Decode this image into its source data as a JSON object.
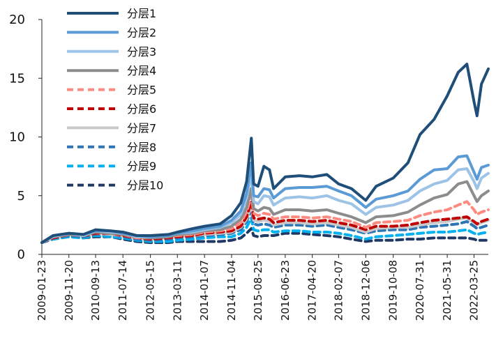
{
  "chart_data": {
    "type": "line",
    "title": "",
    "xlabel": "",
    "ylabel": "",
    "ylim": [
      0,
      20
    ],
    "yticks": [
      0,
      5,
      10,
      15,
      20
    ],
    "xticks": [
      "2009-01-23",
      "2009-11-20",
      "2010-09-13",
      "2011-07-14",
      "2012-05-15",
      "2013-03-11",
      "2014-01-07",
      "2014-11-04",
      "2015-08-25",
      "2016-06-23",
      "2017-04-20",
      "2018-02-07",
      "2018-12-06",
      "2019-10-08",
      "2020-07-31",
      "2021-05-31",
      "2022-03-25"
    ],
    "xrange": [
      "2009-01-23",
      "2022-08-31"
    ],
    "legend_position": "top-left",
    "grid": false,
    "x": [
      "2009-01-23",
      "2009-05-29",
      "2009-11-20",
      "2010-04-30",
      "2010-09-13",
      "2011-02-28",
      "2011-07-14",
      "2011-12-15",
      "2012-05-15",
      "2012-11-30",
      "2013-03-11",
      "2013-08-30",
      "2014-01-07",
      "2014-06-30",
      "2014-11-04",
      "2015-02-15",
      "2015-04-20",
      "2015-06-12",
      "2015-07-08",
      "2015-08-25",
      "2015-10-30",
      "2015-12-31",
      "2016-02-15",
      "2016-06-23",
      "2016-11-30",
      "2017-04-20",
      "2017-09-30",
      "2018-02-07",
      "2018-06-30",
      "2018-12-06",
      "2019-03-31",
      "2019-10-08",
      "2020-03-20",
      "2020-07-31",
      "2021-01-05",
      "2021-05-31",
      "2021-09-30",
      "2022-01-05",
      "2022-03-25",
      "2022-04-27",
      "2022-06-15",
      "2022-08-31"
    ],
    "series": [
      {
        "name": "分层1",
        "color": "#1f4e79",
        "dash": "solid",
        "width": 4,
        "values": [
          1.0,
          1.6,
          1.8,
          1.7,
          2.1,
          2.0,
          1.9,
          1.6,
          1.6,
          1.7,
          1.9,
          2.2,
          2.4,
          2.6,
          3.3,
          4.4,
          6.2,
          9.9,
          6.0,
          5.8,
          7.5,
          7.2,
          5.6,
          6.6,
          6.7,
          6.6,
          6.8,
          6.0,
          5.6,
          4.6,
          5.8,
          6.5,
          7.8,
          10.2,
          11.5,
          13.5,
          15.5,
          16.2,
          13.0,
          11.8,
          14.5,
          15.8
        ]
      },
      {
        "name": "分层2",
        "color": "#5b9bd5",
        "dash": "solid",
        "width": 4,
        "values": [
          1.0,
          1.6,
          1.8,
          1.7,
          2.0,
          2.0,
          1.8,
          1.6,
          1.5,
          1.6,
          1.8,
          2.0,
          2.2,
          2.4,
          2.9,
          3.7,
          5.2,
          7.8,
          5.0,
          4.9,
          5.6,
          5.5,
          4.8,
          5.6,
          5.7,
          5.7,
          5.8,
          5.4,
          5.0,
          4.0,
          4.7,
          5.0,
          5.4,
          6.4,
          7.2,
          7.3,
          8.3,
          8.4,
          7.0,
          6.4,
          7.4,
          7.6
        ]
      },
      {
        "name": "分层3",
        "color": "#9dc3e6",
        "dash": "solid",
        "width": 4,
        "values": [
          1.0,
          1.5,
          1.8,
          1.6,
          2.0,
          1.9,
          1.8,
          1.5,
          1.5,
          1.6,
          1.8,
          1.9,
          2.1,
          2.3,
          2.7,
          3.4,
          4.8,
          6.8,
          4.5,
          4.3,
          5.0,
          4.9,
          4.2,
          4.8,
          4.9,
          4.8,
          5.0,
          4.6,
          4.3,
          3.4,
          4.0,
          4.2,
          4.6,
          5.4,
          6.0,
          6.3,
          7.2,
          7.3,
          6.2,
          5.6,
          6.5,
          6.9
        ]
      },
      {
        "name": "分层4",
        "color": "#8c8c8c",
        "dash": "solid",
        "width": 4,
        "values": [
          1.0,
          1.5,
          1.7,
          1.6,
          1.9,
          1.8,
          1.7,
          1.5,
          1.4,
          1.5,
          1.7,
          1.8,
          2.0,
          2.1,
          2.4,
          3.0,
          4.0,
          5.6,
          3.9,
          3.7,
          4.0,
          3.9,
          3.4,
          3.8,
          3.8,
          3.7,
          3.8,
          3.5,
          3.2,
          2.7,
          3.2,
          3.3,
          3.6,
          4.2,
          4.8,
          5.1,
          6.0,
          6.2,
          5.0,
          4.5,
          5.0,
          5.4
        ]
      },
      {
        "name": "分层5",
        "color": "#ff8a80",
        "dash": "dash",
        "width": 4,
        "values": [
          1.0,
          1.5,
          1.7,
          1.6,
          1.9,
          1.8,
          1.7,
          1.4,
          1.4,
          1.5,
          1.6,
          1.7,
          1.9,
          2.0,
          2.2,
          2.7,
          3.6,
          5.0,
          3.5,
          3.3,
          3.5,
          3.4,
          3.0,
          3.2,
          3.2,
          3.1,
          3.2,
          3.0,
          2.8,
          2.3,
          2.7,
          2.8,
          2.9,
          3.3,
          3.6,
          3.8,
          4.2,
          4.5,
          3.8,
          3.4,
          3.6,
          3.8
        ]
      },
      {
        "name": "分层6",
        "color": "#c00000",
        "dash": "dash",
        "width": 4,
        "values": [
          1.0,
          1.4,
          1.7,
          1.6,
          1.8,
          1.8,
          1.6,
          1.4,
          1.3,
          1.4,
          1.5,
          1.6,
          1.8,
          1.9,
          2.0,
          2.4,
          3.2,
          4.5,
          3.1,
          3.0,
          3.1,
          3.0,
          2.7,
          2.9,
          2.9,
          2.8,
          2.9,
          2.7,
          2.5,
          2.1,
          2.4,
          2.4,
          2.5,
          2.7,
          2.9,
          3.0,
          3.1,
          3.2,
          2.8,
          2.6,
          2.8,
          3.0
        ]
      },
      {
        "name": "分层7",
        "color": "#c9c9c9",
        "dash": "solid",
        "width": 4,
        "values": [
          1.0,
          1.4,
          1.7,
          1.6,
          1.8,
          1.7,
          1.6,
          1.4,
          1.3,
          1.4,
          1.5,
          1.6,
          1.7,
          1.8,
          1.9,
          2.3,
          3.0,
          4.2,
          2.9,
          2.8,
          2.9,
          2.8,
          2.5,
          2.7,
          2.7,
          2.6,
          2.7,
          2.5,
          2.3,
          1.9,
          2.2,
          2.3,
          2.3,
          2.5,
          2.7,
          2.8,
          3.0,
          3.1,
          2.7,
          2.5,
          2.7,
          2.9
        ]
      },
      {
        "name": "分层8",
        "color": "#2e75b6",
        "dash": "dash",
        "width": 4,
        "values": [
          1.0,
          1.4,
          1.6,
          1.5,
          1.7,
          1.7,
          1.5,
          1.3,
          1.2,
          1.3,
          1.4,
          1.5,
          1.6,
          1.7,
          1.8,
          2.1,
          2.8,
          3.8,
          2.6,
          2.5,
          2.6,
          2.5,
          2.3,
          2.5,
          2.5,
          2.4,
          2.5,
          2.3,
          2.1,
          1.8,
          2.0,
          2.1,
          2.1,
          2.3,
          2.4,
          2.5,
          2.6,
          2.8,
          2.4,
          2.2,
          2.3,
          2.5
        ]
      },
      {
        "name": "分层9",
        "color": "#00b0f0",
        "dash": "dash",
        "width": 4,
        "values": [
          1.0,
          1.3,
          1.5,
          1.4,
          1.6,
          1.5,
          1.4,
          1.2,
          1.1,
          1.1,
          1.2,
          1.3,
          1.4,
          1.5,
          1.5,
          1.8,
          2.3,
          3.1,
          2.1,
          2.0,
          2.1,
          2.1,
          1.9,
          2.0,
          2.0,
          1.9,
          1.9,
          1.8,
          1.6,
          1.3,
          1.5,
          1.6,
          1.7,
          1.8,
          1.9,
          1.9,
          2.0,
          2.1,
          1.8,
          1.7,
          1.8,
          1.9
        ]
      },
      {
        "name": "分层10",
        "color": "#1f3864",
        "dash": "dash",
        "width": 4,
        "values": [
          1.0,
          1.3,
          1.5,
          1.4,
          1.5,
          1.5,
          1.3,
          1.1,
          1.0,
          1.0,
          1.1,
          1.1,
          1.1,
          1.1,
          1.2,
          1.4,
          1.8,
          2.2,
          1.6,
          1.5,
          1.6,
          1.6,
          1.6,
          1.8,
          1.8,
          1.7,
          1.6,
          1.5,
          1.3,
          1.1,
          1.2,
          1.2,
          1.3,
          1.3,
          1.4,
          1.4,
          1.4,
          1.4,
          1.3,
          1.2,
          1.2,
          1.2
        ]
      }
    ]
  }
}
